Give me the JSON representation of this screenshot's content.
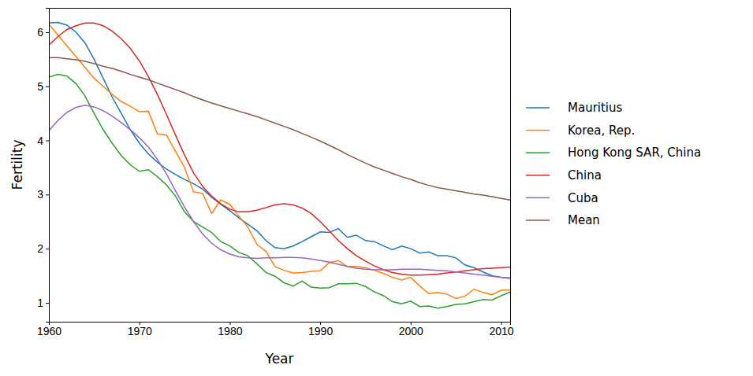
{
  "chart_data": {
    "type": "line",
    "x_label": "Year",
    "y_label": "Fertility",
    "x": [
      1960,
      1961,
      1962,
      1963,
      1964,
      1965,
      1966,
      1967,
      1968,
      1969,
      1970,
      1971,
      1972,
      1973,
      1974,
      1975,
      1976,
      1977,
      1978,
      1979,
      1980,
      1981,
      1982,
      1983,
      1984,
      1985,
      1986,
      1987,
      1988,
      1989,
      1990,
      1991,
      1992,
      1993,
      1994,
      1995,
      1996,
      1997,
      1998,
      1999,
      2000,
      2001,
      2002,
      2003,
      2004,
      2005,
      2006,
      2007,
      2008,
      2009,
      2010,
      2011
    ],
    "xlim": [
      1960,
      2011
    ],
    "xticks": [
      1960,
      1970,
      1980,
      1990,
      2000,
      2010
    ],
    "ylim": [
      0.65,
      6.45
    ],
    "yticks": [
      1,
      2,
      3,
      4,
      5,
      6
    ],
    "grid": false,
    "legend": "outside right",
    "series": [
      {
        "name": "Mauritius",
        "color": "#1f77b4",
        "values": [
          6.17,
          6.18,
          6.13,
          6.0,
          5.8,
          5.5,
          5.15,
          4.8,
          4.5,
          4.2,
          3.95,
          3.75,
          3.6,
          3.47,
          3.37,
          3.28,
          3.2,
          3.1,
          2.95,
          2.82,
          2.7,
          2.57,
          2.45,
          2.33,
          2.15,
          2.02,
          2.0,
          2.05,
          2.13,
          2.22,
          2.31,
          2.3,
          2.37,
          2.21,
          2.25,
          2.15,
          2.13,
          2.05,
          1.98,
          2.05,
          2.0,
          1.92,
          1.94,
          1.87,
          1.87,
          1.83,
          1.7,
          1.65,
          1.57,
          1.5,
          1.47,
          1.45
        ]
      },
      {
        "name": "Korea, Rep.",
        "color": "#ff7f0e",
        "values": [
          6.15,
          5.95,
          5.75,
          5.55,
          5.35,
          5.15,
          5.0,
          4.85,
          4.72,
          4.63,
          4.53,
          4.54,
          4.12,
          4.1,
          3.8,
          3.5,
          3.05,
          3.02,
          2.65,
          2.9,
          2.82,
          2.6,
          2.4,
          2.08,
          1.95,
          1.67,
          1.6,
          1.55,
          1.56,
          1.58,
          1.59,
          1.74,
          1.78,
          1.67,
          1.67,
          1.65,
          1.6,
          1.54,
          1.47,
          1.42,
          1.47,
          1.31,
          1.17,
          1.19,
          1.16,
          1.08,
          1.12,
          1.25,
          1.19,
          1.15,
          1.23,
          1.24
        ]
      },
      {
        "name": "Hong Kong SAR, China",
        "color": "#2ca02c",
        "values": [
          5.17,
          5.22,
          5.19,
          5.05,
          4.82,
          4.5,
          4.2,
          3.95,
          3.72,
          3.55,
          3.43,
          3.46,
          3.33,
          3.18,
          2.97,
          2.68,
          2.5,
          2.4,
          2.3,
          2.13,
          2.05,
          1.93,
          1.87,
          1.72,
          1.56,
          1.49,
          1.37,
          1.31,
          1.4,
          1.29,
          1.27,
          1.28,
          1.35,
          1.35,
          1.36,
          1.3,
          1.2,
          1.13,
          1.02,
          0.98,
          1.03,
          0.93,
          0.94,
          0.9,
          0.93,
          0.97,
          0.98,
          1.02,
          1.06,
          1.05,
          1.13,
          1.2
        ]
      },
      {
        "name": "China",
        "color": "#d62728",
        "values": [
          5.76,
          5.92,
          6.05,
          6.12,
          6.17,
          6.17,
          6.12,
          6.02,
          5.88,
          5.7,
          5.47,
          5.18,
          4.85,
          4.48,
          4.1,
          3.73,
          3.4,
          3.15,
          2.97,
          2.83,
          2.73,
          2.68,
          2.68,
          2.71,
          2.76,
          2.81,
          2.83,
          2.81,
          2.75,
          2.65,
          2.5,
          2.33,
          2.15,
          2.0,
          1.87,
          1.77,
          1.68,
          1.61,
          1.56,
          1.53,
          1.51,
          1.51,
          1.52,
          1.53,
          1.55,
          1.57,
          1.59,
          1.61,
          1.63,
          1.64,
          1.65,
          1.66
        ]
      },
      {
        "name": "Cuba",
        "color": "#9467bd",
        "values": [
          4.18,
          4.37,
          4.52,
          4.61,
          4.65,
          4.62,
          4.55,
          4.45,
          4.33,
          4.2,
          4.05,
          3.88,
          3.65,
          3.38,
          3.07,
          2.77,
          2.5,
          2.27,
          2.1,
          1.98,
          1.9,
          1.85,
          1.83,
          1.82,
          1.83,
          1.83,
          1.84,
          1.84,
          1.83,
          1.81,
          1.78,
          1.75,
          1.71,
          1.67,
          1.64,
          1.62,
          1.61,
          1.61,
          1.61,
          1.62,
          1.62,
          1.62,
          1.61,
          1.6,
          1.59,
          1.57,
          1.55,
          1.53,
          1.51,
          1.49,
          1.47,
          1.46
        ]
      },
      {
        "name": "Mean",
        "color": "#8c564b",
        "values": [
          5.53,
          5.53,
          5.51,
          5.49,
          5.46,
          5.42,
          5.37,
          5.33,
          5.28,
          5.22,
          5.17,
          5.12,
          5.06,
          5.0,
          4.94,
          4.88,
          4.81,
          4.75,
          4.69,
          4.64,
          4.59,
          4.54,
          4.49,
          4.44,
          4.38,
          4.32,
          4.26,
          4.2,
          4.13,
          4.06,
          3.99,
          3.91,
          3.83,
          3.74,
          3.66,
          3.58,
          3.51,
          3.45,
          3.39,
          3.33,
          3.28,
          3.22,
          3.17,
          3.13,
          3.1,
          3.07,
          3.04,
          3.01,
          2.99,
          2.96,
          2.93,
          2.9
        ]
      }
    ]
  }
}
